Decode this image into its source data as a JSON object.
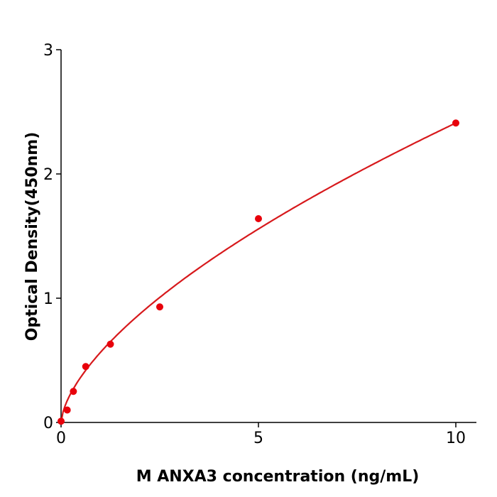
{
  "chart_data": {
    "type": "scatter",
    "title": "",
    "xlabel": "M  ANXA3 concentration (ng/mL)",
    "ylabel": "Optical Density(450nm)",
    "xlim": [
      0,
      10.5
    ],
    "ylim": [
      0,
      3
    ],
    "xticks": [
      "0",
      "5",
      "10"
    ],
    "yticks": [
      "0",
      "1",
      "2",
      "3"
    ],
    "grid": false,
    "series": [
      {
        "x": [
          0,
          0.156,
          0.3125,
          0.625,
          1.25,
          2.5,
          5,
          10
        ],
        "y": [
          0.01,
          0.1,
          0.25,
          0.45,
          0.63,
          0.93,
          1.64,
          2.41
        ],
        "color": "#e8000b",
        "fit_line": true
      }
    ]
  }
}
